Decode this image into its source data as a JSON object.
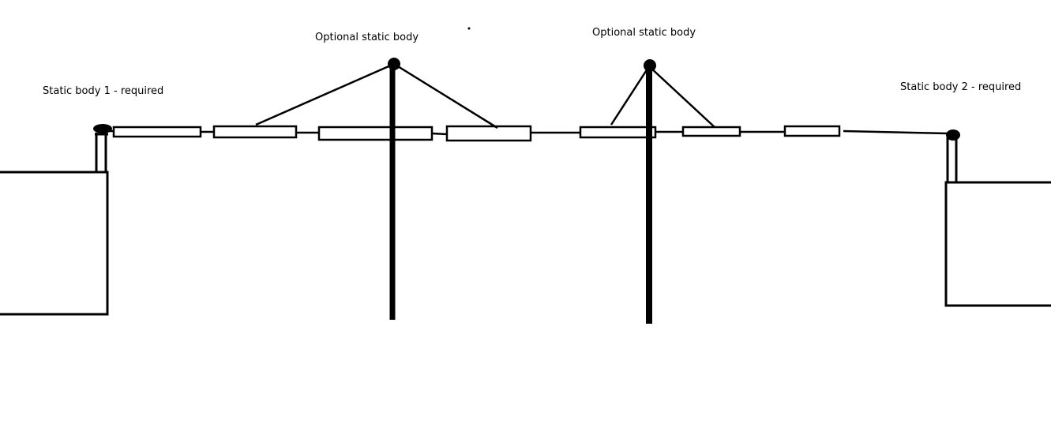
{
  "labels": {
    "static_body_1": "Static body 1 - required",
    "optional_1": "Optional static body",
    "optional_2": "Optional static body",
    "static_body_2": "Static body 2 - required"
  },
  "colors": {
    "stroke": "#000000",
    "background": "#ffffff"
  }
}
